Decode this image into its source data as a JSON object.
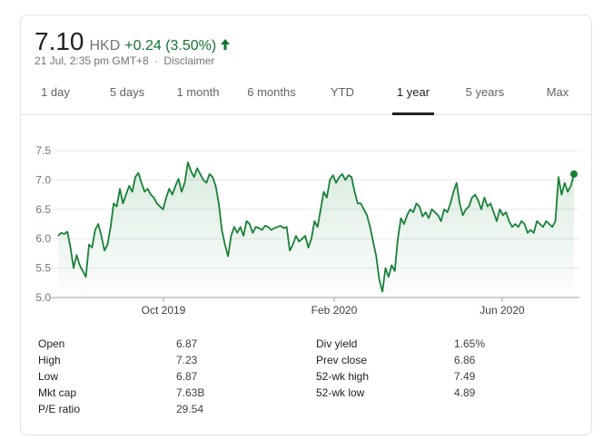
{
  "quote": {
    "price": "7.10",
    "currency": "HKD",
    "change": "+0.24 (3.50%)",
    "timestamp": "21 Jul, 2:35 pm GMT+8",
    "separator": "·",
    "disclaimer": "Disclaimer",
    "up_color": "#137333"
  },
  "tabs": [
    {
      "label": "1 day"
    },
    {
      "label": "5 days"
    },
    {
      "label": "1 month"
    },
    {
      "label": "6 months"
    },
    {
      "label": "YTD"
    },
    {
      "label": "1 year",
      "active": true
    },
    {
      "label": "5 years"
    },
    {
      "label": "Max"
    }
  ],
  "stats_left": [
    {
      "label": "Open",
      "value": "6.87"
    },
    {
      "label": "High",
      "value": "7.23"
    },
    {
      "label": "Low",
      "value": "6.87"
    },
    {
      "label": "Mkt cap",
      "value": "7.63B"
    },
    {
      "label": "P/E ratio",
      "value": "29.54"
    }
  ],
  "stats_right": [
    {
      "label": "Div yield",
      "value": "1.65%"
    },
    {
      "label": "Prev close",
      "value": "6.86"
    },
    {
      "label": "52-wk high",
      "value": "7.49"
    },
    {
      "label": "52-wk low",
      "value": "4.89"
    }
  ],
  "chart_data": {
    "type": "area",
    "title": "",
    "xlabel": "",
    "ylabel": "",
    "ylim": [
      5.0,
      7.5
    ],
    "yticks": [
      5.0,
      5.5,
      6.0,
      6.5,
      7.0,
      7.5
    ],
    "ytick_labels": [
      "5.0",
      "5.5",
      "6.0",
      "6.5",
      "7.0",
      "7.5"
    ],
    "xtick_labels": [
      "Oct 2019",
      "Feb 2020",
      "Jun 2020"
    ],
    "grid": true,
    "line_color": "#188038",
    "values": [
      6.05,
      6.1,
      6.08,
      6.12,
      5.85,
      5.5,
      5.72,
      5.55,
      5.45,
      5.35,
      5.9,
      5.85,
      6.15,
      6.25,
      6.05,
      5.8,
      5.9,
      6.2,
      6.6,
      6.55,
      6.85,
      6.6,
      6.75,
      6.9,
      6.8,
      7.05,
      7.12,
      6.95,
      6.8,
      6.85,
      6.75,
      6.7,
      6.6,
      6.55,
      6.5,
      6.7,
      6.85,
      6.75,
      6.9,
      7.02,
      6.8,
      6.95,
      7.3,
      7.15,
      7.05,
      7.2,
      7.1,
      7.0,
      6.95,
      7.1,
      7.05,
      6.9,
      6.6,
      6.15,
      5.9,
      5.7,
      6.05,
      6.2,
      6.1,
      6.2,
      6.05,
      6.3,
      6.25,
      6.1,
      6.2,
      6.18,
      6.15,
      6.22,
      6.2,
      6.15,
      6.18,
      6.2,
      6.22,
      6.18,
      6.2,
      5.8,
      5.9,
      6.05,
      5.95,
      6.0,
      6.05,
      5.85,
      6.0,
      6.3,
      6.2,
      6.5,
      6.8,
      6.7,
      7.0,
      7.08,
      6.95,
      7.05,
      7.1,
      7.0,
      7.08,
      7.05,
      6.8,
      6.6,
      6.6,
      6.5,
      6.4,
      6.2,
      5.95,
      5.7,
      5.3,
      5.1,
      5.5,
      5.35,
      5.55,
      5.45,
      6.0,
      6.35,
      6.25,
      6.4,
      6.5,
      6.45,
      6.6,
      6.55,
      6.38,
      6.45,
      6.35,
      6.5,
      6.45,
      6.4,
      6.3,
      6.5,
      6.45,
      6.6,
      6.8,
      6.95,
      6.6,
      6.4,
      6.5,
      6.55,
      6.7,
      6.75,
      6.65,
      6.5,
      6.7,
      6.55,
      6.6,
      6.45,
      6.3,
      6.5,
      6.4,
      6.45,
      6.3,
      6.2,
      6.25,
      6.2,
      6.3,
      6.25,
      6.1,
      6.15,
      6.1,
      6.3,
      6.25,
      6.2,
      6.3,
      6.25,
      6.2,
      6.3,
      7.05,
      6.75,
      6.95,
      6.8,
      6.9,
      7.1
    ],
    "last_value": 7.1
  }
}
